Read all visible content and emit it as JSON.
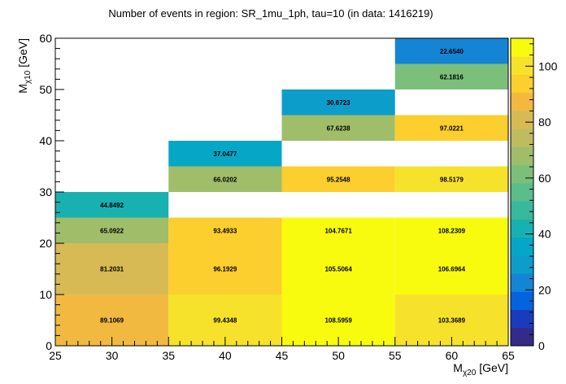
{
  "chart_data": {
    "type": "heatmap",
    "title": "Number of events in region: SR_1mu_1ph, tau=10 (in data: 1416219)",
    "xlabel": {
      "main": "M",
      "sub": "χ20",
      "unit": " [GeV]"
    },
    "ylabel": {
      "main": "M",
      "sub": "χ10",
      "unit": " [GeV]"
    },
    "xlim": [
      25,
      65
    ],
    "ylim": [
      0,
      60
    ],
    "zlim": [
      0,
      110
    ],
    "x_ticks": [
      25,
      30,
      35,
      40,
      45,
      50,
      55,
      60,
      65
    ],
    "y_ticks": [
      0,
      10,
      20,
      30,
      40,
      50,
      60
    ],
    "z_ticks": [
      0,
      20,
      40,
      60,
      80,
      100
    ],
    "colorscale": [
      "#352a87",
      "#1b3bbd",
      "#0363e1",
      "#1485d4",
      "#0d9dcb",
      "#06a7c6",
      "#18b1b2",
      "#38b99e",
      "#59bd8c",
      "#7cbf7b",
      "#a0bd6a",
      "#bebc5e",
      "#d8ba55",
      "#f1b940",
      "#fcce2e",
      "#f6e22a",
      "#f9fb0e"
    ],
    "cells": [
      {
        "x": [
          25,
          35
        ],
        "y": [
          0,
          10
        ],
        "value": 89.1069,
        "label": "89.1069"
      },
      {
        "x": [
          25,
          35
        ],
        "y": [
          10,
          20
        ],
        "value": 81.2031,
        "label": "81.2031"
      },
      {
        "x": [
          25,
          35
        ],
        "y": [
          20,
          25
        ],
        "value": 65.0922,
        "label": "65.0922"
      },
      {
        "x": [
          25,
          35
        ],
        "y": [
          25,
          30
        ],
        "value": 44.8492,
        "label": "44.8492"
      },
      {
        "x": [
          35,
          45
        ],
        "y": [
          0,
          10
        ],
        "value": 99.4348,
        "label": "99.4348"
      },
      {
        "x": [
          35,
          45
        ],
        "y": [
          10,
          20
        ],
        "value": 96.1929,
        "label": "96.1929"
      },
      {
        "x": [
          35,
          45
        ],
        "y": [
          20,
          25
        ],
        "value": 93.4933,
        "label": "93.4933"
      },
      {
        "x": [
          35,
          45
        ],
        "y": [
          30,
          35
        ],
        "value": 66.0202,
        "label": "66.0202"
      },
      {
        "x": [
          35,
          45
        ],
        "y": [
          35,
          40
        ],
        "value": 37.0477,
        "label": "37.0477"
      },
      {
        "x": [
          45,
          55
        ],
        "y": [
          0,
          10
        ],
        "value": 108.5959,
        "label": "108.5959"
      },
      {
        "x": [
          45,
          55
        ],
        "y": [
          10,
          20
        ],
        "value": 105.5064,
        "label": "105.5064"
      },
      {
        "x": [
          45,
          55
        ],
        "y": [
          20,
          25
        ],
        "value": 104.7671,
        "label": "104.7671"
      },
      {
        "x": [
          45,
          55
        ],
        "y": [
          30,
          35
        ],
        "value": 95.2548,
        "label": "95.2548"
      },
      {
        "x": [
          45,
          55
        ],
        "y": [
          40,
          45
        ],
        "value": 67.6238,
        "label": "67.6238"
      },
      {
        "x": [
          45,
          55
        ],
        "y": [
          45,
          50
        ],
        "value": 30.6723,
        "label": "30.6723"
      },
      {
        "x": [
          55,
          65
        ],
        "y": [
          0,
          10
        ],
        "value": 103.3689,
        "label": "103.3689"
      },
      {
        "x": [
          55,
          65
        ],
        "y": [
          10,
          20
        ],
        "value": 106.6964,
        "label": "106.6964"
      },
      {
        "x": [
          55,
          65
        ],
        "y": [
          20,
          25
        ],
        "value": 108.2309,
        "label": "108.2309"
      },
      {
        "x": [
          55,
          65
        ],
        "y": [
          30,
          35
        ],
        "value": 98.5179,
        "label": "98.5179"
      },
      {
        "x": [
          55,
          65
        ],
        "y": [
          40,
          45
        ],
        "value": 97.0221,
        "label": "97.0221"
      },
      {
        "x": [
          55,
          65
        ],
        "y": [
          50,
          55
        ],
        "value": 62.1816,
        "label": "62.1816"
      },
      {
        "x": [
          55,
          65
        ],
        "y": [
          55,
          60
        ],
        "value": 22.654,
        "label": "22.6540"
      }
    ]
  }
}
